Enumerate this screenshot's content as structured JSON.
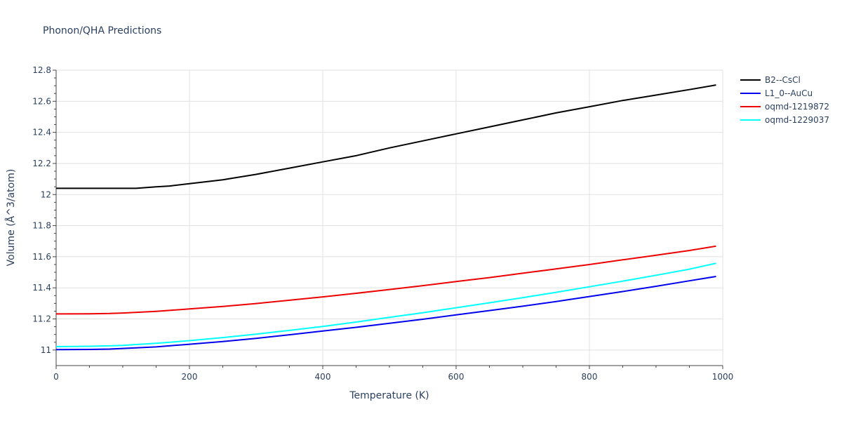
{
  "chart_data": {
    "type": "line",
    "title": "Phonon/QHA Predictions",
    "xlabel": "Temperature (K)",
    "ylabel": "Volume (Å^3/atom)",
    "xlim": [
      0,
      1000
    ],
    "ylim": [
      10.9,
      12.8
    ],
    "x_ticks": [
      0,
      200,
      400,
      600,
      800,
      1000
    ],
    "x_tick_labels": [
      "0",
      "200",
      "400",
      "600",
      "800",
      "1000"
    ],
    "y_ticks": [
      11,
      11.2,
      11.4,
      11.6,
      11.8,
      12,
      12.2,
      12.4,
      12.6,
      12.8
    ],
    "y_tick_labels": [
      "11",
      "11.2",
      "11.4",
      "11.6",
      "11.8",
      "12",
      "12.2",
      "12.4",
      "12.6",
      "12.8"
    ],
    "grid": true,
    "legend_position": "right",
    "series": [
      {
        "name": "B2--CsCl",
        "color": "#000000",
        "x": [
          0,
          50,
          100,
          120,
          150,
          170,
          200,
          250,
          300,
          350,
          400,
          450,
          500,
          550,
          600,
          650,
          700,
          750,
          800,
          850,
          900,
          950,
          990
        ],
        "y": [
          12.04,
          12.04,
          12.04,
          12.04,
          12.05,
          12.055,
          12.07,
          12.095,
          12.13,
          12.17,
          12.21,
          12.25,
          12.3,
          12.345,
          12.39,
          12.435,
          12.48,
          12.525,
          12.565,
          12.605,
          12.64,
          12.675,
          12.705
        ]
      },
      {
        "name": "L1_0--AuCu",
        "color": "#0000ee",
        "x": [
          0,
          50,
          80,
          100,
          150,
          200,
          250,
          300,
          350,
          400,
          450,
          500,
          550,
          600,
          650,
          700,
          750,
          800,
          850,
          900,
          950,
          990
        ],
        "y": [
          11.003,
          11.004,
          11.006,
          11.01,
          11.02,
          11.037,
          11.055,
          11.075,
          11.098,
          11.122,
          11.146,
          11.172,
          11.198,
          11.226,
          11.254,
          11.282,
          11.312,
          11.344,
          11.376,
          11.41,
          11.445,
          11.473
        ]
      },
      {
        "name": "oqmd-1219872",
        "color": "#ee0000",
        "x": [
          0,
          50,
          80,
          100,
          150,
          200,
          250,
          300,
          350,
          400,
          450,
          500,
          550,
          600,
          650,
          700,
          750,
          800,
          850,
          900,
          950,
          990
        ],
        "y": [
          11.232,
          11.233,
          11.235,
          11.238,
          11.249,
          11.264,
          11.28,
          11.299,
          11.32,
          11.342,
          11.365,
          11.389,
          11.414,
          11.44,
          11.466,
          11.494,
          11.522,
          11.55,
          11.58,
          11.61,
          11.64,
          11.668
        ]
      },
      {
        "name": "oqmd-1229037",
        "color": "#00ffff",
        "x": [
          0,
          50,
          80,
          100,
          150,
          200,
          250,
          300,
          350,
          400,
          450,
          500,
          550,
          600,
          650,
          700,
          750,
          800,
          850,
          900,
          950,
          990
        ],
        "y": [
          11.022,
          11.024,
          11.027,
          11.03,
          11.043,
          11.06,
          11.08,
          11.102,
          11.126,
          11.152,
          11.18,
          11.21,
          11.24,
          11.272,
          11.304,
          11.337,
          11.371,
          11.407,
          11.443,
          11.481,
          11.52,
          11.558
        ]
      }
    ]
  }
}
